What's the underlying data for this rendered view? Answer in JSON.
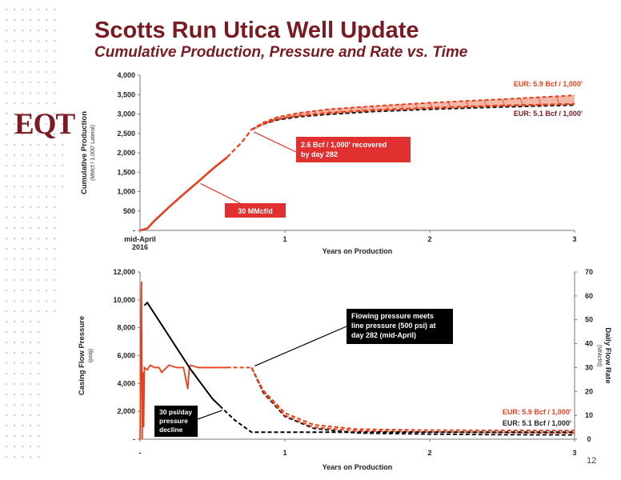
{
  "header": {
    "title": "Scotts Run Utica Well Update",
    "subtitle": "Cumulative Production, Pressure and Rate vs. Time",
    "logo": "EQT",
    "page_number": "12"
  },
  "colors": {
    "brand": "#7a1a22",
    "production_line": "#e8401c",
    "eur_high": "#e8401c",
    "eur_low": "#1a1a1a",
    "annotation_box": "#e03030"
  },
  "chart_data": [
    {
      "type": "line",
      "ylabel": "Cumulative Production",
      "ylabel_sub": "(MMcf / 1,000' Lateral)",
      "xlabel": "Years on Production",
      "xlim": [
        0,
        3
      ],
      "ylim": [
        0,
        4000
      ],
      "yticks": [
        {
          "v": 0,
          "label": "-"
        },
        {
          "v": 500,
          "label": "500"
        },
        {
          "v": 1000,
          "label": "1,000"
        },
        {
          "v": 1500,
          "label": "1,500"
        },
        {
          "v": 2000,
          "label": "2,000"
        },
        {
          "v": 2500,
          "label": "2,500"
        },
        {
          "v": 3000,
          "label": "3,000"
        },
        {
          "v": 3500,
          "label": "3,500"
        },
        {
          "v": 4000,
          "label": "4,000"
        }
      ],
      "xticks": [
        {
          "v": 0,
          "label": "mid-April",
          "label2": "2016"
        },
        {
          "v": 1,
          "label": "1"
        },
        {
          "v": 2,
          "label": "2"
        },
        {
          "v": 3,
          "label": "3"
        }
      ],
      "series": [
        {
          "name": "actual",
          "x": [
            0,
            0.05,
            0.1,
            0.2,
            0.3,
            0.4,
            0.5,
            0.6
          ],
          "y": [
            0,
            50,
            250,
            600,
            930,
            1250,
            1580,
            1880
          ]
        },
        {
          "name": "forecast",
          "x": [
            0.6,
            0.7,
            0.77,
            0.85,
            0.95,
            1.1,
            1.3,
            1.6,
            2.0,
            2.5,
            3.0
          ],
          "y": [
            1880,
            2260,
            2600,
            2750,
            2870,
            2960,
            3030,
            3100,
            3160,
            3220,
            3260
          ]
        },
        {
          "name": "EUR: 5.9 Bcf / 1,000'",
          "x": [
            0.77,
            0.85,
            0.95,
            1.1,
            1.3,
            1.6,
            2.0,
            2.5,
            3.0
          ],
          "y": [
            2600,
            2780,
            2920,
            3030,
            3120,
            3200,
            3290,
            3380,
            3480
          ]
        },
        {
          "name": "EUR: 5.1 Bcf / 1,000'",
          "x": [
            0.77,
            0.85,
            0.95,
            1.1,
            1.3,
            1.6,
            2.0,
            2.5,
            3.0
          ],
          "y": [
            2600,
            2740,
            2850,
            2930,
            2990,
            3060,
            3120,
            3180,
            3230
          ]
        }
      ],
      "annotations": [
        {
          "text": "2.6 Bcf / 1,000' recovered",
          "text2": "by day 282",
          "x": 0.77,
          "y": 2600
        },
        {
          "text": "30 MMcf/d",
          "x": 0.4,
          "y": 1250
        }
      ],
      "eur_labels": [
        "EUR: 5.9 Bcf / 1,000'",
        "EUR: 5.1 Bcf / 1,000'"
      ]
    },
    {
      "type": "line",
      "ylabel": "Casing Flow Pressure",
      "ylabel_sub": "(psig)",
      "y2label": "Daily Flow Rate",
      "y2label_sub": "(MMcf/d)",
      "xlabel": "Years on Production",
      "xlim": [
        0,
        3
      ],
      "ylim": [
        0,
        12000
      ],
      "y2lim": [
        0,
        70
      ],
      "yticks": [
        {
          "v": 0,
          "label": "-"
        },
        {
          "v": 2000,
          "label": "2,000"
        },
        {
          "v": 4000,
          "label": "4,000"
        },
        {
          "v": 6000,
          "label": "6,000"
        },
        {
          "v": 8000,
          "label": "8,000"
        },
        {
          "v": 10000,
          "label": "10,000"
        },
        {
          "v": 12000,
          "label": "12,000"
        }
      ],
      "y2ticks": [
        0,
        10,
        20,
        30,
        40,
        50,
        60,
        70
      ],
      "xticks": [
        {
          "v": 0,
          "label": "-"
        },
        {
          "v": 1,
          "label": "1"
        },
        {
          "v": 2,
          "label": "2"
        },
        {
          "v": 3,
          "label": "3"
        }
      ],
      "series": [
        {
          "name": "pressure",
          "axis": "left",
          "x": [
            0.03,
            0.05,
            0.1,
            0.15,
            0.2,
            0.25,
            0.3,
            0.35,
            0.4,
            0.45,
            0.5,
            0.55
          ],
          "y": [
            9600,
            9800,
            9000,
            8200,
            7400,
            6600,
            5800,
            5000,
            4300,
            3600,
            2900,
            2400
          ]
        },
        {
          "name": "pressure forecast",
          "axis": "left",
          "x": [
            0.55,
            0.65,
            0.77,
            1.0,
            1.5,
            2.0,
            2.5,
            3.0
          ],
          "y": [
            2400,
            1400,
            500,
            500,
            500,
            500,
            500,
            500
          ]
        },
        {
          "name": "rate",
          "axis": "right",
          "x": [
            0.0,
            0.01,
            0.015,
            0.02,
            0.025,
            0.03,
            0.05,
            0.07,
            0.1,
            0.13,
            0.15,
            0.2,
            0.25,
            0.3,
            0.33,
            0.34,
            0.35,
            0.4,
            0.45,
            0.5,
            0.55,
            0.6
          ],
          "y": [
            0,
            66,
            0,
            28,
            5,
            30,
            29,
            31,
            30,
            30,
            28,
            31,
            30,
            30,
            21,
            30,
            31,
            30,
            30,
            30,
            30,
            30
          ]
        },
        {
          "name": "rate forecast",
          "axis": "right",
          "x": [
            0.6,
            0.77,
            0.85,
            1.0,
            1.2,
            1.5,
            2.0,
            2.5,
            3.0
          ],
          "y": [
            30,
            30,
            20,
            10,
            5,
            3.5,
            3.0,
            2.8,
            2.6
          ]
        },
        {
          "name": "EUR: 5.9 Bcf / 1,000'",
          "axis": "right",
          "x": [
            0.77,
            0.85,
            1.0,
            1.2,
            1.5,
            2.0,
            2.5,
            3.0
          ],
          "y": [
            30,
            20.5,
            11,
            6,
            4.2,
            3.8,
            3.7,
            3.6
          ]
        },
        {
          "name": "EUR: 5.1 Bcf / 1,000'",
          "axis": "right",
          "x": [
            0.77,
            0.85,
            1.0,
            1.2,
            1.5,
            2.0,
            2.5,
            3.0
          ],
          "y": [
            30,
            19.5,
            9.5,
            4.5,
            2.6,
            2.1,
            1.9,
            1.8
          ]
        }
      ],
      "annotations": [
        {
          "text": "Flowing pressure meets",
          "text2": "line pressure (500 psi) at",
          "text3": "day 282 (mid-April)",
          "x": 0.77,
          "y2": 30
        },
        {
          "text": "30 psi/day",
          "text2": "pressure",
          "text3": "decline",
          "x": 0.6,
          "y": 2300
        }
      ],
      "eur_labels": [
        "EUR: 5.9 Bcf / 1,000'",
        "EUR: 5.1 Bcf / 1,000'"
      ]
    }
  ]
}
